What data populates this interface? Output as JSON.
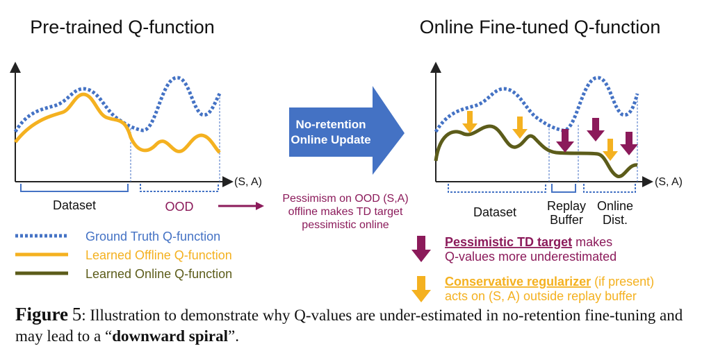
{
  "left_panel": {
    "title": "Pre-trained Q-function",
    "axis_label": "(S, A)",
    "dataset_label": "Dataset",
    "ood_label": "OOD"
  },
  "right_panel": {
    "title": "Online Fine-tuned Q-function",
    "axis_label": "(S, A)",
    "dataset_label": "Dataset",
    "replay_label_line1": "Replay",
    "replay_label_line2": "Buffer",
    "online_label_line1": "Online",
    "online_label_line2": "Dist."
  },
  "center_arrow": {
    "line1": "No-retention",
    "line2": "Online Update",
    "color": "#4472C4"
  },
  "pessimism_note": {
    "line1": "Pessimism on OOD (S,A)",
    "line2": "offline makes TD target",
    "line3": "pessimistic online"
  },
  "legend": {
    "ground_truth": "Ground Truth Q-function",
    "offline": "Learned Offline Q-function",
    "online": "Learned Online Q-function"
  },
  "notes": {
    "pessimistic_bold": "Pessimistic TD target",
    "pessimistic_rest": " makes",
    "pessimistic_line2": "Q-values more underestimated",
    "conservative_bold": "Conservative regularizer",
    "conservative_rest": " (if present)",
    "conservative_line2": "acts on (S, A) outside replay buffer"
  },
  "caption": {
    "figure_word": "Figure",
    "figure_num": "5",
    "text1": ": Illustration to demonstrate why Q-values are under-estimated in no-retention fine-tuning and may lead to a “",
    "bold": "downward spiral",
    "text2": "”."
  },
  "colors": {
    "ground_truth": "#4472C4",
    "offline": "#F4B120",
    "online": "#5C5C1A",
    "pessimistic": "#8B1A5A",
    "conservative": "#F4B120"
  }
}
